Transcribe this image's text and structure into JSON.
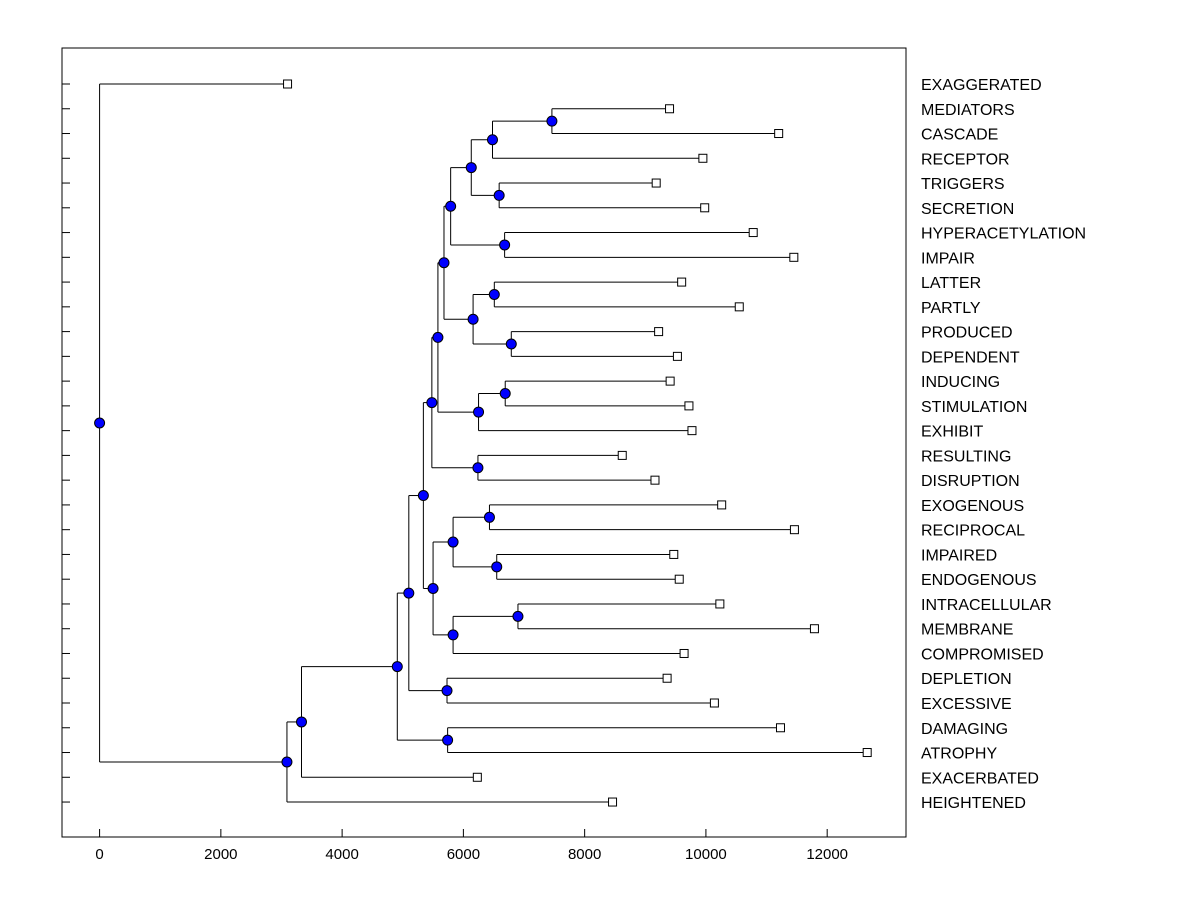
{
  "chart_data": {
    "type": "dendrogram",
    "orientation": "horizontal",
    "title": "",
    "xlabel": "",
    "ylabel": "",
    "xlim": [
      -620,
      13300
    ],
    "xticks": [
      0,
      2000,
      4000,
      6000,
      8000,
      10000,
      12000
    ],
    "xtick_labels": [
      "0",
      "2000",
      "4000",
      "6000",
      "8000",
      "10000",
      "12000"
    ],
    "grid": false,
    "colors": {
      "node": "#0000ff",
      "leaf": "#ffffff",
      "line": "#000000"
    },
    "leaves": [
      {
        "id": "L1",
        "label": "EXAGGERATED",
        "height": 3100
      },
      {
        "id": "L2",
        "label": "MEDIATORS",
        "height": 9400
      },
      {
        "id": "L3",
        "label": "CASCADE",
        "height": 11200
      },
      {
        "id": "L4",
        "label": "RECEPTOR",
        "height": 9950
      },
      {
        "id": "L5",
        "label": "TRIGGERS",
        "height": 9180
      },
      {
        "id": "L6",
        "label": "SECRETION",
        "height": 9980
      },
      {
        "id": "L7",
        "label": "HYPERACETYLATION",
        "height": 10780
      },
      {
        "id": "L8",
        "label": "IMPAIR",
        "height": 11450
      },
      {
        "id": "L9",
        "label": "LATTER",
        "height": 9600
      },
      {
        "id": "L10",
        "label": "PARTLY",
        "height": 10550
      },
      {
        "id": "L11",
        "label": "PRODUCED",
        "height": 9220
      },
      {
        "id": "L12",
        "label": "DEPENDENT",
        "height": 9530
      },
      {
        "id": "L13",
        "label": "INDUCING",
        "height": 9410
      },
      {
        "id": "L14",
        "label": "STIMULATION",
        "height": 9720
      },
      {
        "id": "L15",
        "label": "EXHIBIT",
        "height": 9770
      },
      {
        "id": "L16",
        "label": "RESULTING",
        "height": 8620
      },
      {
        "id": "L17",
        "label": "DISRUPTION",
        "height": 9160
      },
      {
        "id": "L18",
        "label": "EXOGENOUS",
        "height": 10260
      },
      {
        "id": "L19",
        "label": "RECIPROCAL",
        "height": 11460
      },
      {
        "id": "L20",
        "label": "IMPAIRED",
        "height": 9470
      },
      {
        "id": "L21",
        "label": "ENDOGENOUS",
        "height": 9560
      },
      {
        "id": "L22",
        "label": "INTRACELLULAR",
        "height": 10230
      },
      {
        "id": "L23",
        "label": "MEMBRANE",
        "height": 11790
      },
      {
        "id": "L24",
        "label": "COMPROMISED",
        "height": 9640
      },
      {
        "id": "L25",
        "label": "DEPLETION",
        "height": 9360
      },
      {
        "id": "L26",
        "label": "EXCESSIVE",
        "height": 10140
      },
      {
        "id": "L27",
        "label": "DAMAGING",
        "height": 11230
      },
      {
        "id": "L28",
        "label": "ATROPHY",
        "height": 12660
      },
      {
        "id": "L29",
        "label": "EXACERBATED",
        "height": 6230
      },
      {
        "id": "L30",
        "label": "HEIGHTENED",
        "height": 8460
      }
    ],
    "merges": [
      {
        "id": "n_med_cas",
        "height": 7460,
        "children": [
          "L2",
          "L3"
        ]
      },
      {
        "id": "n_mcr",
        "height": 6480,
        "children": [
          "n_med_cas",
          "L4"
        ]
      },
      {
        "id": "n_trig_sec",
        "height": 6590,
        "children": [
          "L5",
          "L6"
        ]
      },
      {
        "id": "n_mcrts",
        "height": 6130,
        "children": [
          "n_mcr",
          "n_trig_sec"
        ]
      },
      {
        "id": "n_hyp_imp",
        "height": 6680,
        "children": [
          "L7",
          "L8"
        ]
      },
      {
        "id": "n_top6",
        "height": 5790,
        "children": [
          "n_mcrts",
          "n_hyp_imp"
        ]
      },
      {
        "id": "n_lat_par",
        "height": 6510,
        "children": [
          "L9",
          "L10"
        ]
      },
      {
        "id": "n_pro_dep",
        "height": 6790,
        "children": [
          "L11",
          "L12"
        ]
      },
      {
        "id": "n_lppd",
        "height": 6160,
        "children": [
          "n_lat_par",
          "n_pro_dep"
        ]
      },
      {
        "id": "n_top10",
        "height": 5680,
        "children": [
          "n_top6",
          "n_lppd"
        ]
      },
      {
        "id": "n_ind_sti",
        "height": 6690,
        "children": [
          "L13",
          "L14"
        ]
      },
      {
        "id": "n_ise",
        "height": 6250,
        "children": [
          "n_ind_sti",
          "L15"
        ]
      },
      {
        "id": "n_top13",
        "height": 5580,
        "children": [
          "n_top10",
          "n_ise"
        ]
      },
      {
        "id": "n_res_dis",
        "height": 6240,
        "children": [
          "L16",
          "L17"
        ]
      },
      {
        "id": "n_top15",
        "height": 5480,
        "children": [
          "n_top13",
          "n_res_dis"
        ]
      },
      {
        "id": "n_exo_rec",
        "height": 6430,
        "children": [
          "L18",
          "L19"
        ]
      },
      {
        "id": "n_imp_end",
        "height": 6550,
        "children": [
          "L20",
          "L21"
        ]
      },
      {
        "id": "n_erie",
        "height": 5830,
        "children": [
          "n_exo_rec",
          "n_imp_end"
        ]
      },
      {
        "id": "n_int_mem",
        "height": 6900,
        "children": [
          "L22",
          "L23"
        ]
      },
      {
        "id": "n_imc",
        "height": 5830,
        "children": [
          "n_int_mem",
          "L24"
        ]
      },
      {
        "id": "n_mid",
        "height": 5500,
        "children": [
          "n_erie",
          "n_imc"
        ]
      },
      {
        "id": "n_top22",
        "height": 5340,
        "children": [
          "n_top15",
          "n_mid"
        ]
      },
      {
        "id": "n_dep_exc",
        "height": 5730,
        "children": [
          "L25",
          "L26"
        ]
      },
      {
        "id": "n_top24",
        "height": 5100,
        "children": [
          "n_top22",
          "n_dep_exc"
        ]
      },
      {
        "id": "n_dam_atr",
        "height": 5740,
        "children": [
          "L27",
          "L28"
        ]
      },
      {
        "id": "n_top26",
        "height": 4910,
        "children": [
          "n_top24",
          "n_dam_atr"
        ]
      },
      {
        "id": "n_top27",
        "height": 3330,
        "children": [
          "n_top26",
          "L29"
        ]
      },
      {
        "id": "n_top28",
        "height": 3090,
        "children": [
          "n_top27",
          "L30"
        ]
      },
      {
        "id": "n_root",
        "height": 0,
        "children": [
          "L1",
          "n_top28"
        ]
      }
    ]
  }
}
